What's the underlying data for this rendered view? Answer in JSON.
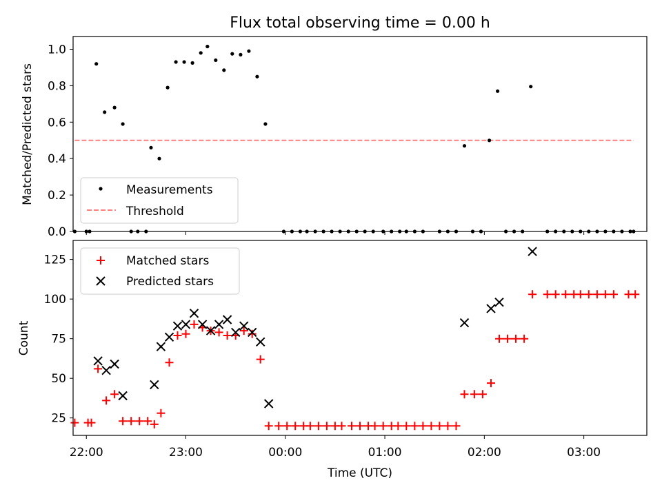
{
  "title": "Flux total observing time = 0.00 h",
  "colors": {
    "measurement": "#000000",
    "threshold": "#ff7f7f",
    "matched": "#ff0000",
    "predicted": "#000000"
  },
  "chart_data": [
    {
      "type": "scatter",
      "ylabel": "Matched/Predicted stars",
      "xlim": [
        "21:52",
        "03:38"
      ],
      "ylim": [
        0,
        1.07
      ],
      "yticks": [
        "0.0",
        "0.2",
        "0.4",
        "0.6",
        "0.8",
        "1.0"
      ],
      "legend": {
        "placement": "lower-left",
        "entries": [
          "Measurements",
          "Threshold"
        ]
      },
      "threshold": {
        "value": 0.5,
        "x_from": "21:53",
        "x_to": "03:30"
      },
      "series": [
        {
          "name": "Measurements",
          "points": [
            [
              "21:53",
              0.0
            ],
            [
              "22:00",
              0.0
            ],
            [
              "22:02",
              0.0
            ],
            [
              "22:06",
              0.92
            ],
            [
              "22:11",
              0.655
            ],
            [
              "22:17",
              0.68
            ],
            [
              "22:22",
              0.59
            ],
            [
              "22:27",
              0.0
            ],
            [
              "22:31",
              0.0
            ],
            [
              "22:36",
              0.0
            ],
            [
              "22:39",
              0.46
            ],
            [
              "22:44",
              0.4
            ],
            [
              "22:49",
              0.79
            ],
            [
              "22:54",
              0.93
            ],
            [
              "22:59",
              0.93
            ],
            [
              "23:04",
              0.925
            ],
            [
              "23:09",
              0.98
            ],
            [
              "23:13",
              1.015
            ],
            [
              "23:18",
              0.94
            ],
            [
              "23:23",
              0.885
            ],
            [
              "23:28",
              0.975
            ],
            [
              "23:33",
              0.97
            ],
            [
              "23:38",
              0.99
            ],
            [
              "23:43",
              0.85
            ],
            [
              "23:48",
              0.59
            ],
            [
              "23:59",
              0.0
            ],
            [
              "00:04",
              0.0
            ],
            [
              "00:09",
              0.0
            ],
            [
              "00:13",
              0.0
            ],
            [
              "00:18",
              0.0
            ],
            [
              "00:23",
              0.0
            ],
            [
              "00:28",
              0.0
            ],
            [
              "00:33",
              0.0
            ],
            [
              "00:38",
              0.0
            ],
            [
              "00:43",
              0.0
            ],
            [
              "00:48",
              0.0
            ],
            [
              "00:53",
              0.0
            ],
            [
              "00:59",
              0.0
            ],
            [
              "01:04",
              0.0
            ],
            [
              "01:09",
              0.0
            ],
            [
              "01:13",
              0.0
            ],
            [
              "01:18",
              0.0
            ],
            [
              "01:23",
              0.0
            ],
            [
              "01:33",
              0.0
            ],
            [
              "01:38",
              0.0
            ],
            [
              "01:43",
              0.0
            ],
            [
              "01:48",
              0.47
            ],
            [
              "01:53",
              0.0
            ],
            [
              "01:58",
              0.0
            ],
            [
              "02:03",
              0.5
            ],
            [
              "02:08",
              0.77
            ],
            [
              "02:13",
              0.0
            ],
            [
              "02:18",
              0.0
            ],
            [
              "02:23",
              0.0
            ],
            [
              "02:28",
              0.795
            ],
            [
              "02:38",
              0.0
            ],
            [
              "02:43",
              0.0
            ],
            [
              "02:48",
              0.0
            ],
            [
              "02:53",
              0.0
            ],
            [
              "02:58",
              0.0
            ],
            [
              "03:03",
              0.0
            ],
            [
              "03:08",
              0.0
            ],
            [
              "03:13",
              0.0
            ],
            [
              "03:18",
              0.0
            ],
            [
              "03:23",
              0.0
            ],
            [
              "03:28",
              0.0
            ],
            [
              "03:30",
              0.0
            ]
          ]
        }
      ]
    },
    {
      "type": "scatter",
      "xlabel": "Time (UTC)",
      "ylabel": "Count",
      "xlim": [
        "21:52",
        "03:38"
      ],
      "ylim": [
        14,
        137
      ],
      "xticks": [
        "22:00",
        "23:00",
        "00:00",
        "01:00",
        "02:00",
        "03:00"
      ],
      "yticks": [
        "25",
        "50",
        "75",
        "100",
        "125"
      ],
      "legend": {
        "placement": "upper-left",
        "entries": [
          "Matched stars",
          "Predicted stars"
        ]
      },
      "series": [
        {
          "name": "Matched stars",
          "points": [
            [
              "21:53",
              22
            ],
            [
              "22:01",
              22
            ],
            [
              "22:03",
              22
            ],
            [
              "22:07",
              56
            ],
            [
              "22:12",
              36
            ],
            [
              "22:17",
              40
            ],
            [
              "22:22",
              23
            ],
            [
              "22:27",
              23
            ],
            [
              "22:32",
              23
            ],
            [
              "22:37",
              23
            ],
            [
              "22:41",
              21
            ],
            [
              "22:45",
              28
            ],
            [
              "22:50",
              60
            ],
            [
              "22:55",
              77
            ],
            [
              "23:00",
              78
            ],
            [
              "23:05",
              84
            ],
            [
              "23:10",
              82
            ],
            [
              "23:15",
              80
            ],
            [
              "23:20",
              79
            ],
            [
              "23:25",
              77
            ],
            [
              "23:30",
              77
            ],
            [
              "23:35",
              80
            ],
            [
              "23:40",
              78
            ],
            [
              "23:45",
              62
            ],
            [
              "23:50",
              20
            ],
            [
              "23:56",
              20
            ],
            [
              "00:01",
              20
            ],
            [
              "00:06",
              20
            ],
            [
              "00:11",
              20
            ],
            [
              "00:15",
              20
            ],
            [
              "00:20",
              20
            ],
            [
              "00:25",
              20
            ],
            [
              "00:30",
              20
            ],
            [
              "00:34",
              20
            ],
            [
              "00:40",
              20
            ],
            [
              "00:45",
              20
            ],
            [
              "00:50",
              20
            ],
            [
              "00:54",
              20
            ],
            [
              "00:59",
              20
            ],
            [
              "01:04",
              20
            ],
            [
              "01:08",
              20
            ],
            [
              "01:13",
              20
            ],
            [
              "01:18",
              20
            ],
            [
              "01:23",
              20
            ],
            [
              "01:28",
              20
            ],
            [
              "01:33",
              20
            ],
            [
              "01:38",
              20
            ],
            [
              "01:43",
              20
            ],
            [
              "01:48",
              40
            ],
            [
              "01:54",
              40
            ],
            [
              "01:59",
              40
            ],
            [
              "02:04",
              47
            ],
            [
              "02:09",
              75
            ],
            [
              "02:14",
              75
            ],
            [
              "02:19",
              75
            ],
            [
              "02:24",
              75
            ],
            [
              "02:29",
              103
            ],
            [
              "02:38",
              103
            ],
            [
              "02:43",
              103
            ],
            [
              "02:49",
              103
            ],
            [
              "02:54",
              103
            ],
            [
              "02:58",
              103
            ],
            [
              "03:03",
              103
            ],
            [
              "03:08",
              103
            ],
            [
              "03:13",
              103
            ],
            [
              "03:18",
              103
            ],
            [
              "03:27",
              103
            ],
            [
              "03:31",
              103
            ]
          ]
        },
        {
          "name": "Predicted stars",
          "points": [
            [
              "22:07",
              61
            ],
            [
              "22:12",
              55
            ],
            [
              "22:17",
              59
            ],
            [
              "22:22",
              39
            ],
            [
              "22:41",
              46
            ],
            [
              "22:45",
              70
            ],
            [
              "22:50",
              76
            ],
            [
              "22:55",
              83
            ],
            [
              "23:00",
              84
            ],
            [
              "23:05",
              91
            ],
            [
              "23:10",
              84
            ],
            [
              "23:15",
              80
            ],
            [
              "23:20",
              84
            ],
            [
              "23:25",
              87
            ],
            [
              "23:30",
              79
            ],
            [
              "23:35",
              83
            ],
            [
              "23:40",
              79
            ],
            [
              "23:45",
              73
            ],
            [
              "23:50",
              34
            ],
            [
              "01:48",
              85
            ],
            [
              "02:04",
              94
            ],
            [
              "02:09",
              98
            ],
            [
              "02:29",
              130
            ]
          ]
        }
      ]
    }
  ]
}
